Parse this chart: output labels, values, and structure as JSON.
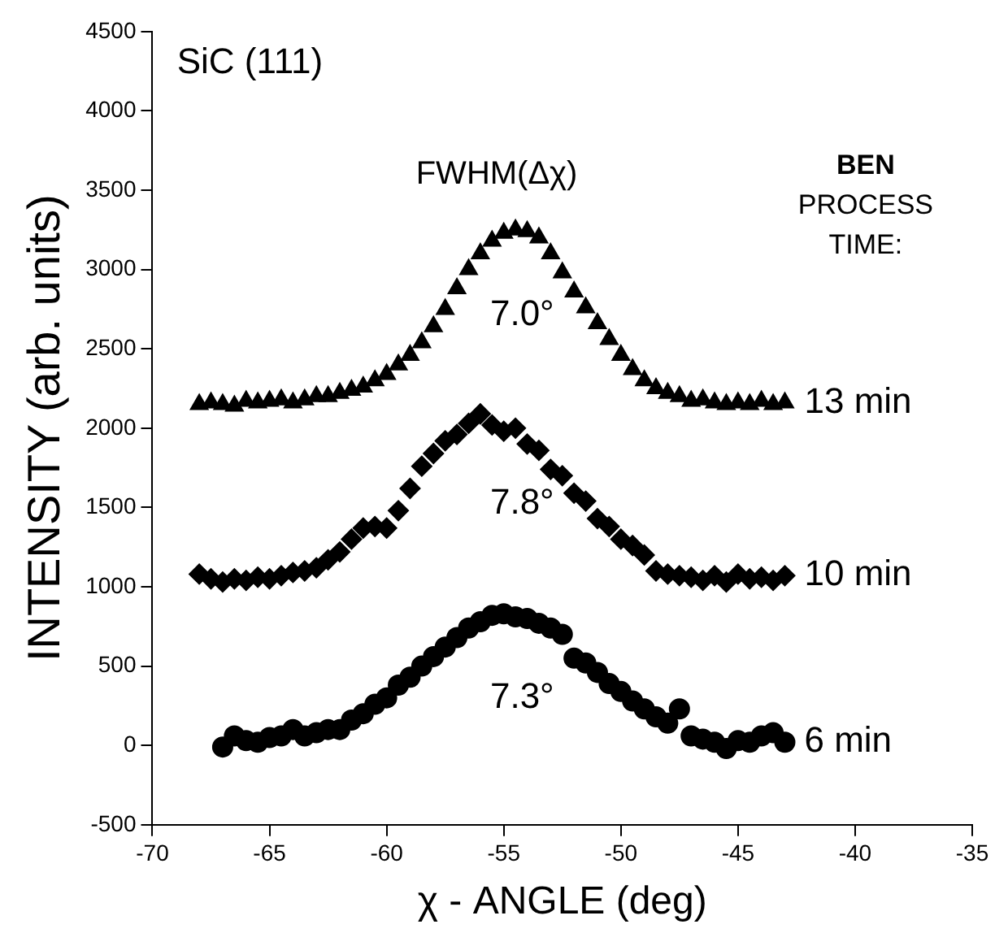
{
  "chart_data": {
    "type": "scatter",
    "xlabel": "χ - ANGLE (deg)",
    "ylabel": "INTENSITY (arb. units)",
    "xlim": [
      -70,
      -35
    ],
    "xticks": [
      -70,
      -65,
      -60,
      -55,
      -50,
      -45,
      -40,
      -35
    ],
    "ylim": [
      -500,
      4500
    ],
    "yticks": [
      -500,
      0,
      500,
      1000,
      1500,
      2000,
      2500,
      3000,
      3500,
      4000,
      4500
    ],
    "grid": false,
    "legend": false,
    "annotations": [
      "SiC (111)",
      "FWHM(Δχ)",
      "BEN",
      "PROCESS",
      "TIME:",
      "7.0°",
      "7.8°",
      "7.3°"
    ],
    "series": [
      {
        "name": "13 min",
        "color": "#000000",
        "marker": "triangle",
        "x": [
          -68,
          -67.5,
          -67,
          -66.5,
          -66,
          -65.5,
          -65,
          -64.5,
          -64,
          -63.5,
          -63,
          -62.5,
          -62,
          -61.5,
          -61,
          -60.5,
          -60,
          -59.5,
          -59,
          -58.5,
          -58,
          -57.5,
          -57,
          -56.5,
          -56,
          -55.5,
          -55,
          -54.5,
          -54,
          -53.5,
          -53,
          -52.5,
          -52,
          -51.5,
          -51,
          -50.5,
          -50,
          -49.5,
          -49,
          -48.5,
          -48,
          -47.5,
          -47,
          -46.5,
          -46,
          -45.5,
          -45,
          -44.5,
          -44,
          -43.5,
          -43
        ],
        "values": [
          2150,
          2160,
          2150,
          2140,
          2170,
          2160,
          2170,
          2180,
          2160,
          2180,
          2200,
          2200,
          2220,
          2240,
          2260,
          2300,
          2340,
          2400,
          2460,
          2540,
          2640,
          2750,
          2880,
          3000,
          3100,
          3180,
          3230,
          3250,
          3240,
          3200,
          3100,
          2980,
          2860,
          2760,
          2660,
          2560,
          2460,
          2370,
          2300,
          2250,
          2220,
          2200,
          2170,
          2180,
          2160,
          2150,
          2160,
          2150,
          2170,
          2150,
          2160
        ]
      },
      {
        "name": "10 min",
        "color": "#000000",
        "marker": "diamond",
        "x": [
          -68,
          -67.5,
          -67,
          -66.5,
          -66,
          -65.5,
          -65,
          -64.5,
          -64,
          -63.5,
          -63,
          -62.5,
          -62,
          -61.5,
          -61,
          -60.5,
          -60,
          -59.5,
          -59,
          -58.5,
          -58,
          -57.5,
          -57,
          -56.5,
          -56,
          -55.5,
          -55,
          -54.5,
          -54,
          -53.5,
          -53,
          -52.5,
          -52,
          -51.5,
          -51,
          -50.5,
          -50,
          -49.5,
          -49,
          -48.5,
          -48,
          -47.5,
          -47,
          -46.5,
          -46,
          -45.5,
          -45,
          -44.5,
          -44,
          -43.5,
          -43
        ],
        "values": [
          1080,
          1050,
          1030,
          1050,
          1040,
          1060,
          1050,
          1070,
          1090,
          1100,
          1120,
          1170,
          1220,
          1300,
          1370,
          1380,
          1370,
          1480,
          1620,
          1760,
          1840,
          1920,
          1960,
          2030,
          2090,
          2020,
          1980,
          2000,
          1900,
          1860,
          1740,
          1700,
          1590,
          1540,
          1430,
          1380,
          1300,
          1260,
          1200,
          1100,
          1080,
          1070,
          1060,
          1040,
          1070,
          1030,
          1080,
          1050,
          1060,
          1040,
          1070
        ]
      },
      {
        "name": "6 min",
        "color": "#000000",
        "marker": "circle",
        "x": [
          -67,
          -66.5,
          -66,
          -65.5,
          -65,
          -64.5,
          -64,
          -63.5,
          -63,
          -62.5,
          -62,
          -61.5,
          -61,
          -60.5,
          -60,
          -59.5,
          -59,
          -58.5,
          -58,
          -57.5,
          -57,
          -56.5,
          -56,
          -55.5,
          -55,
          -54.5,
          -54,
          -53.5,
          -53,
          -52.5,
          -52,
          -51.5,
          -51,
          -50.5,
          -50,
          -49.5,
          -49,
          -48.5,
          -48,
          -47.5,
          -47,
          -46.5,
          -46,
          -45.5,
          -45,
          -44.5,
          -44,
          -43.5,
          -43
        ],
        "values": [
          -10,
          60,
          30,
          20,
          50,
          60,
          100,
          60,
          80,
          100,
          100,
          160,
          200,
          260,
          300,
          380,
          430,
          500,
          560,
          620,
          680,
          740,
          780,
          820,
          830,
          810,
          800,
          770,
          740,
          700,
          550,
          520,
          460,
          390,
          340,
          280,
          230,
          180,
          140,
          230,
          60,
          40,
          20,
          -20,
          30,
          20,
          60,
          80,
          20
        ]
      }
    ]
  }
}
